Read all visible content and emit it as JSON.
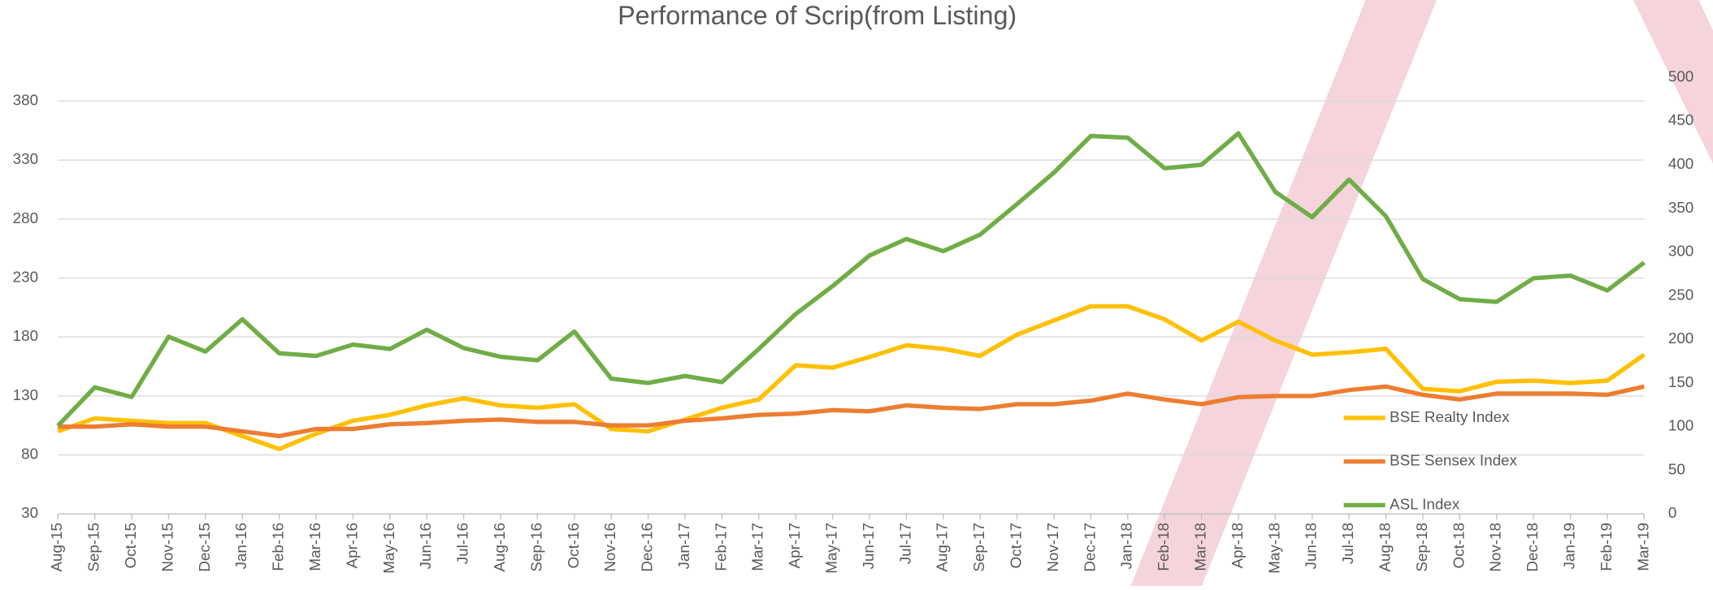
{
  "chart_data": {
    "type": "line",
    "title": "Performance of Scrip(from Listing)",
    "categories": [
      "Aug-15",
      "Sep-15",
      "Oct-15",
      "Nov-15",
      "Dec-15",
      "Jan-16",
      "Feb-16",
      "Mar-16",
      "Apr-16",
      "May-16",
      "Jun-16",
      "Jul-16",
      "Aug-16",
      "Sep-16",
      "Oct-16",
      "Nov-16",
      "Dec-16",
      "Jan-17",
      "Feb-17",
      "Mar-17",
      "Apr-17",
      "May-17",
      "Jun-17",
      "Jul-17",
      "Aug-17",
      "Sep-17",
      "Oct-17",
      "Nov-17",
      "Dec-17",
      "Jan-18",
      "Feb-18",
      "Mar-18",
      "Apr-18",
      "May-18",
      "Jun-18",
      "Jul-18",
      "Aug-18",
      "Sep-18",
      "Oct-18",
      "Nov-18",
      "Dec-18",
      "Jan-19",
      "Feb-19",
      "Mar-19"
    ],
    "series": [
      {
        "name": "BSE Realty Index",
        "color": "#FFC000",
        "values": [
          100,
          111,
          109,
          107,
          107,
          96,
          85,
          98,
          109,
          114,
          122,
          128,
          122,
          120,
          123,
          102,
          100,
          110,
          120,
          127,
          156,
          154,
          163,
          173,
          170,
          164,
          182,
          194,
          206,
          206,
          195,
          177,
          193,
          177,
          165,
          167,
          170,
          136,
          134,
          142,
          143,
          141,
          143,
          165
        ]
      },
      {
        "name": "BSE Sensex Index",
        "color": "#ED7D31",
        "values": [
          104,
          104,
          106,
          104,
          104,
          100,
          96,
          102,
          102,
          106,
          107,
          109,
          110,
          108,
          108,
          105,
          105,
          109,
          111,
          114,
          115,
          118,
          117,
          122,
          120,
          119,
          123,
          123,
          126,
          132,
          127,
          123,
          129,
          130,
          130,
          135,
          138,
          131,
          127,
          132,
          132,
          132,
          131,
          138
        ]
      },
      {
        "name": "ASL Index",
        "color": "#70AD47",
        "axis": "y2",
        "values": [
          101,
          145,
          134,
          203,
          186,
          223,
          184,
          181,
          194,
          189,
          211,
          190,
          180,
          176,
          209,
          155,
          150,
          158,
          151,
          189,
          229,
          261,
          296,
          315,
          301,
          320,
          355,
          391,
          433,
          431,
          396,
          400,
          436,
          369,
          340,
          383,
          341,
          269,
          246,
          243,
          270,
          273,
          256,
          288
        ]
      }
    ],
    "ylim": [
      30,
      400
    ],
    "yticks": [
      30,
      80,
      130,
      180,
      230,
      280,
      330,
      380
    ],
    "y2lim": [
      0,
      500
    ],
    "y2ticks": [
      0,
      50,
      100,
      150,
      200,
      250,
      300,
      350,
      400,
      450,
      500
    ],
    "grid": true,
    "legend": "right"
  }
}
